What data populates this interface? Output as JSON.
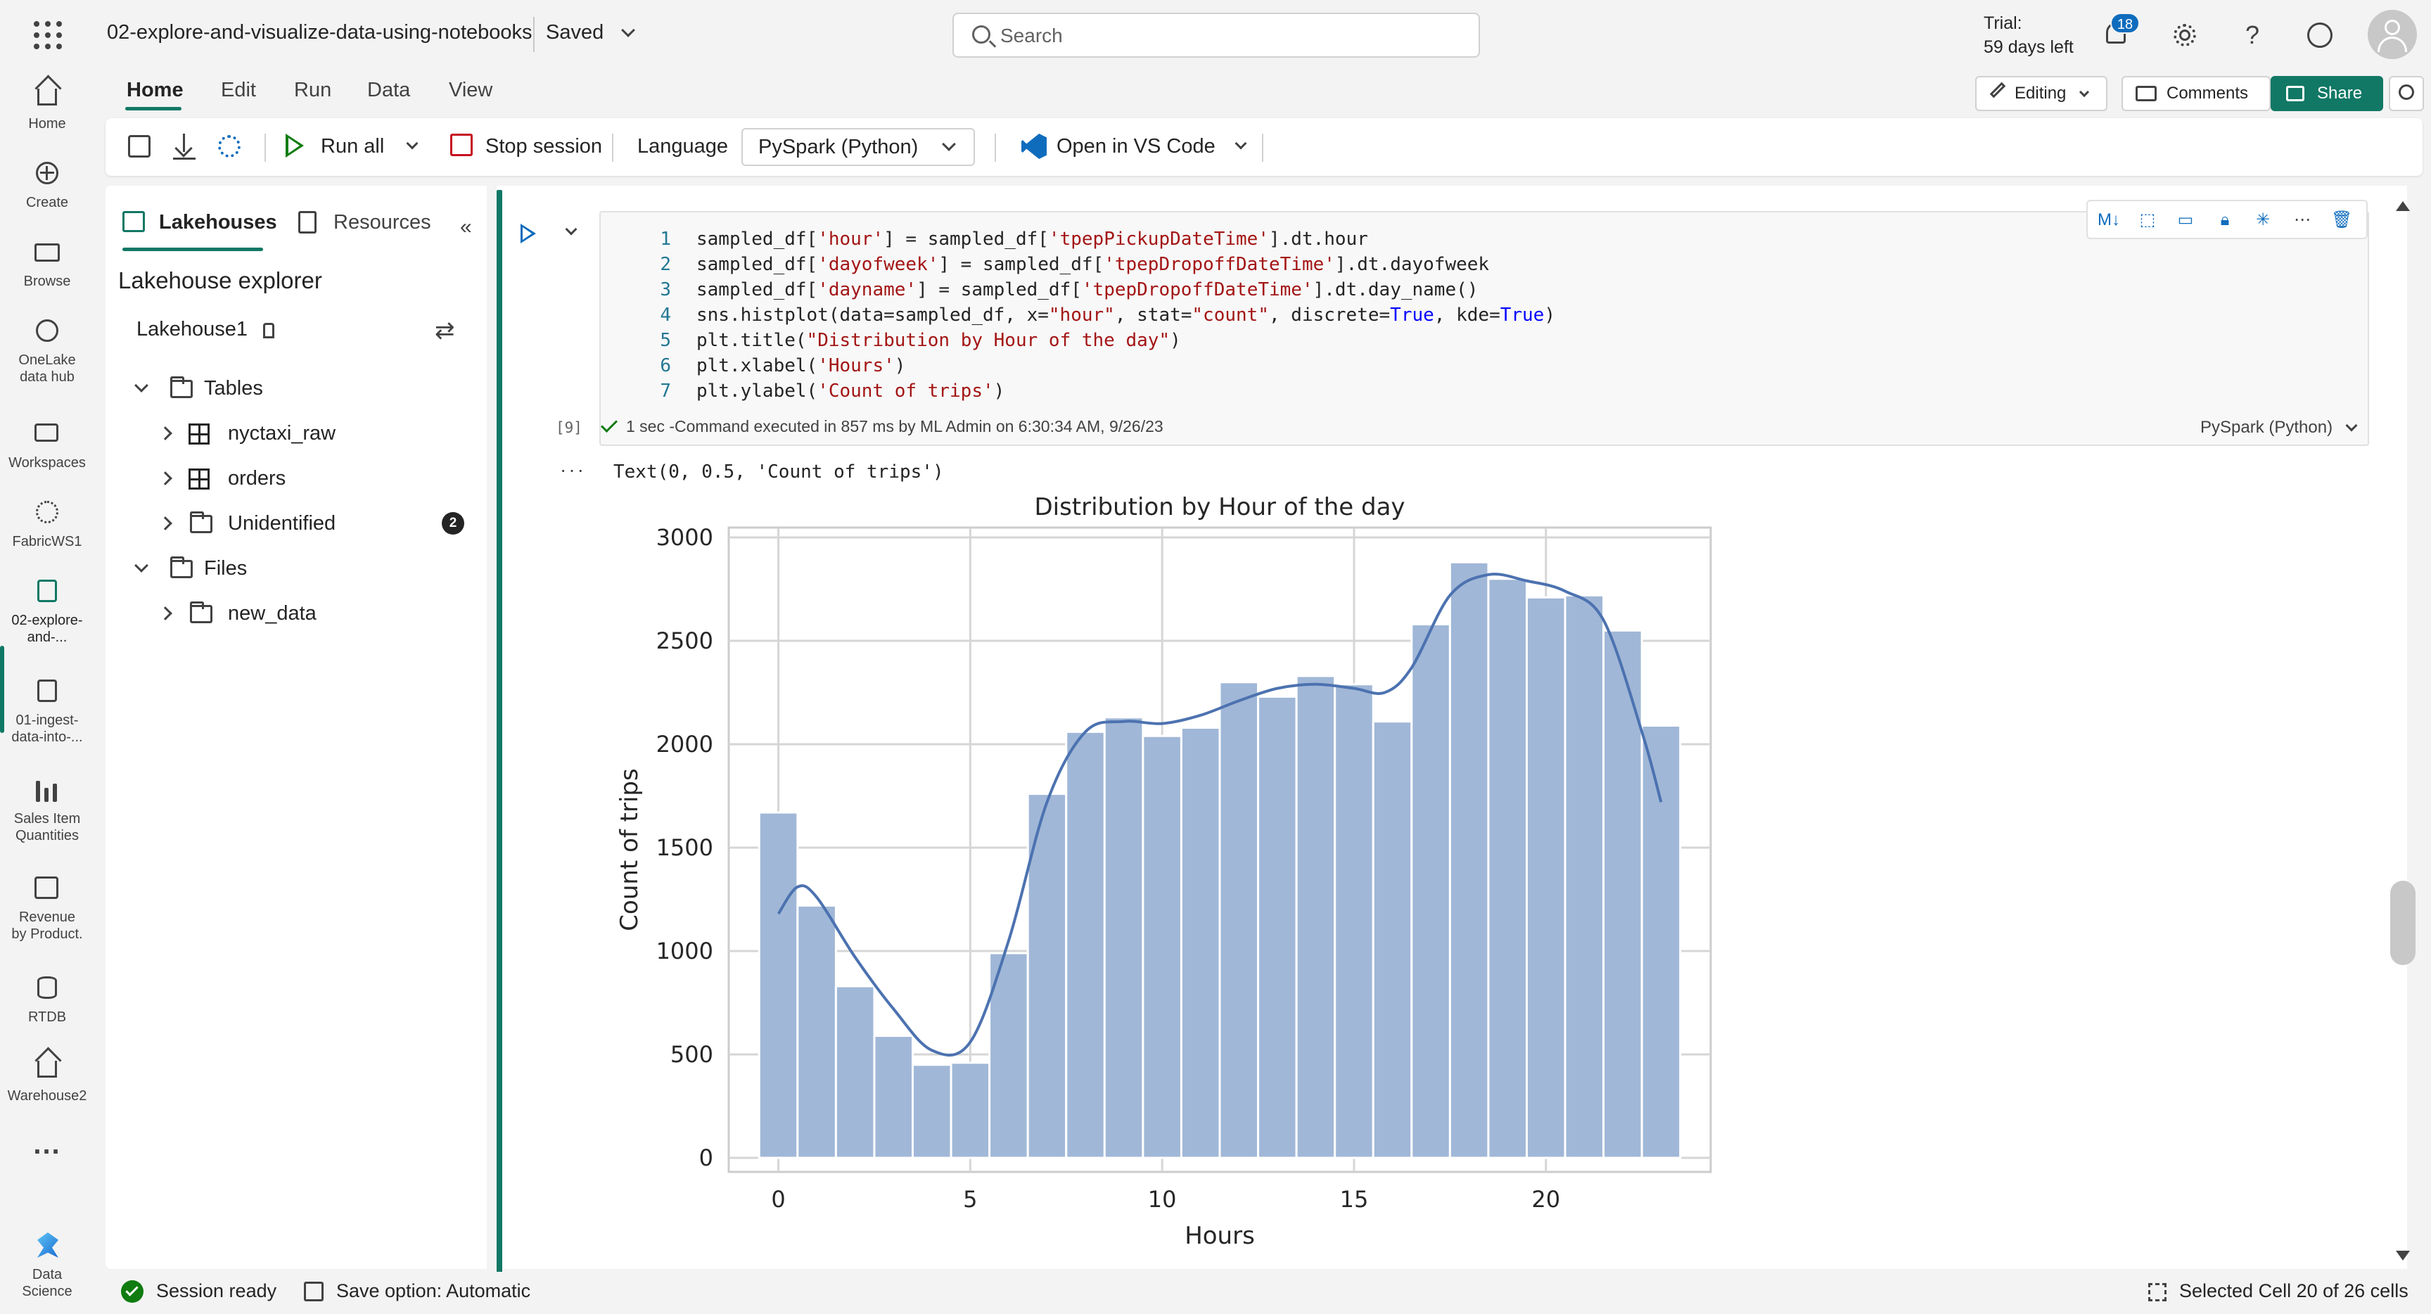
{
  "header": {
    "doc_title": "02-explore-and-visualize-data-using-notebooks",
    "saved": "Saved",
    "search_placeholder": "Search",
    "trial_line1": "Trial:",
    "trial_line2": "59 days left",
    "notifications": "18",
    "help": "?"
  },
  "rail": [
    {
      "label": "Home",
      "icon": "home-icon"
    },
    {
      "label": "Create",
      "icon": "plus-icon"
    },
    {
      "label": "Browse",
      "icon": "folder-icon"
    },
    {
      "label": "OneLake data hub",
      "icon": "onelake-icon"
    },
    {
      "label": "Workspaces",
      "icon": "workspaces-icon"
    },
    {
      "label": "FabricWS1",
      "icon": "workspace-icon"
    },
    {
      "label": "02-explore-and-...",
      "icon": "notebook-icon"
    },
    {
      "label": "01-ingest-data-into-...",
      "icon": "notebook-icon"
    },
    {
      "label": "Sales Item Quantities",
      "icon": "report-icon"
    },
    {
      "label": "Revenue by Product.",
      "icon": "report-icon"
    },
    {
      "label": "RTDB",
      "icon": "database-icon"
    },
    {
      "label": "Warehouse2",
      "icon": "warehouse-icon"
    },
    {
      "label": "...",
      "icon": "more-icon"
    },
    {
      "label": "Data Science",
      "icon": "data-science-icon"
    }
  ],
  "ribbon": {
    "tabs": [
      "Home",
      "Edit",
      "Run",
      "Data",
      "View"
    ],
    "editing": "Editing",
    "comments": "Comments",
    "share": "Share"
  },
  "toolbar": {
    "run_all": "Run all",
    "stop_session": "Stop session",
    "language_label": "Language",
    "language_value": "PySpark (Python)",
    "open_vscode": "Open in VS Code"
  },
  "explorer": {
    "tabs": [
      "Lakehouses",
      "Resources"
    ],
    "title": "Lakehouse explorer",
    "lakehouse": "Lakehouse1",
    "tables_label": "Tables",
    "tables": [
      "nyctaxi_raw",
      "orders",
      "Unidentified"
    ],
    "unidentified_count": "2",
    "files_label": "Files",
    "files": [
      "new_data"
    ]
  },
  "cell": {
    "lines": [
      "1",
      "2",
      "3",
      "4",
      "5",
      "6",
      "7"
    ],
    "exec_count": "[9]",
    "status": "1 sec -Command executed in 857 ms by ML Admin on 6:30:34 AM, 9/26/23",
    "language": "PySpark (Python)",
    "output_text": "Text(0, 0.5, 'Count of trips')"
  },
  "statusbar": {
    "session": "Session ready",
    "save_option": "Save option: Automatic",
    "selected_cell": "Selected Cell 20 of 26 cells"
  },
  "colors": {
    "accent": "#117865",
    "bar": "#a0b7d7",
    "kde": "#4c72b0"
  },
  "chart_data": {
    "type": "bar",
    "title": "Distribution by Hour of the day",
    "xlabel": "Hours",
    "ylabel": "Count of trips",
    "x_range": [
      -1,
      24
    ],
    "ylim": [
      0,
      3000
    ],
    "xticks": [
      0,
      5,
      10,
      15,
      20
    ],
    "yticks": [
      0,
      500,
      1000,
      1500,
      2000,
      2500,
      3000
    ],
    "grid": true,
    "bins": [
      {
        "x": 0,
        "value": 1670
      },
      {
        "x": 1,
        "value": 1220
      },
      {
        "x": 2,
        "value": 830
      },
      {
        "x": 3,
        "value": 590
      },
      {
        "x": 4,
        "value": 450
      },
      {
        "x": 5,
        "value": 460
      },
      {
        "x": 6,
        "value": 990
      },
      {
        "x": 7,
        "value": 1760
      },
      {
        "x": 8,
        "value": 2060
      },
      {
        "x": 9,
        "value": 2130
      },
      {
        "x": 10,
        "value": 2040
      },
      {
        "x": 11,
        "value": 2080
      },
      {
        "x": 12,
        "value": 2300
      },
      {
        "x": 13,
        "value": 2230
      },
      {
        "x": 14,
        "value": 2330
      },
      {
        "x": 15,
        "value": 2290
      },
      {
        "x": 16,
        "value": 2110
      },
      {
        "x": 17,
        "value": 2580
      },
      {
        "x": 18,
        "value": 2880
      },
      {
        "x": 19,
        "value": 2800
      },
      {
        "x": 20,
        "value": 2710
      },
      {
        "x": 21,
        "value": 2720
      },
      {
        "x": 22,
        "value": 2550
      },
      {
        "x": 23,
        "value": 2090
      }
    ],
    "kde": [
      {
        "x": 0,
        "y": 1180
      },
      {
        "x": 0.5,
        "y": 1310
      },
      {
        "x": 1,
        "y": 1260
      },
      {
        "x": 2,
        "y": 970
      },
      {
        "x": 3,
        "y": 720
      },
      {
        "x": 4,
        "y": 520
      },
      {
        "x": 5,
        "y": 560
      },
      {
        "x": 6,
        "y": 1050
      },
      {
        "x": 7,
        "y": 1720
      },
      {
        "x": 8,
        "y": 2060
      },
      {
        "x": 9,
        "y": 2110
      },
      {
        "x": 10,
        "y": 2100
      },
      {
        "x": 11,
        "y": 2140
      },
      {
        "x": 12,
        "y": 2210
      },
      {
        "x": 13,
        "y": 2270
      },
      {
        "x": 14,
        "y": 2290
      },
      {
        "x": 15,
        "y": 2270
      },
      {
        "x": 15.8,
        "y": 2250
      },
      {
        "x": 16.5,
        "y": 2370
      },
      {
        "x": 17.5,
        "y": 2720
      },
      {
        "x": 18.5,
        "y": 2820
      },
      {
        "x": 19.5,
        "y": 2790
      },
      {
        "x": 20.5,
        "y": 2740
      },
      {
        "x": 21.5,
        "y": 2600
      },
      {
        "x": 22.5,
        "y": 2060
      },
      {
        "x": 23,
        "y": 1720
      }
    ]
  }
}
